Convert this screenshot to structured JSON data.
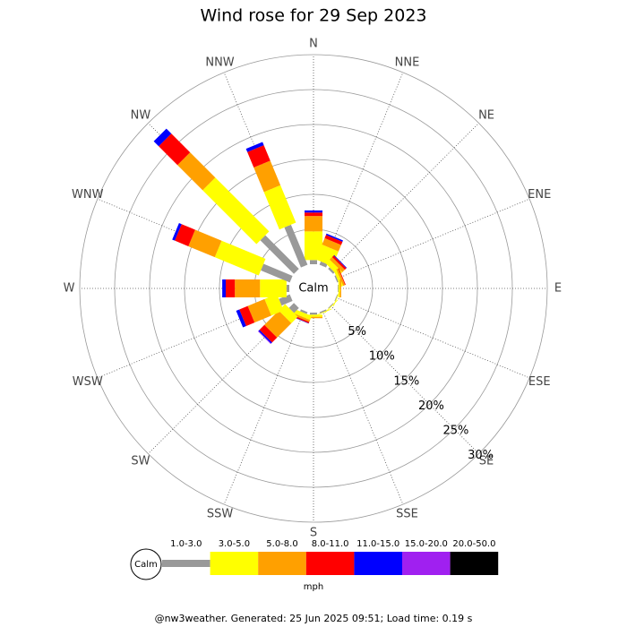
{
  "chart_data": {
    "type": "windrose",
    "title": "Wind rose for 29 Sep 2023",
    "categories": [
      "N",
      "NNE",
      "NE",
      "ENE",
      "E",
      "ESE",
      "SE",
      "SSE",
      "S",
      "SSW",
      "SW",
      "WSW",
      "W",
      "WNW",
      "NW",
      "NNW"
    ],
    "calm_label": "Calm",
    "unit": "mph",
    "rlim": [
      0,
      30
    ],
    "rticks": [
      {
        "value": 5,
        "label": "5%"
      },
      {
        "value": 10,
        "label": "10%"
      },
      {
        "value": 15,
        "label": "15%"
      },
      {
        "value": 20,
        "label": "20%"
      },
      {
        "value": 25,
        "label": "25%"
      },
      {
        "value": 30,
        "label": "30%"
      }
    ],
    "grid": true,
    "series": [
      {
        "name": "1.0-3.0",
        "color": "#999999",
        "values": [
          0.6,
          0.5,
          0.3,
          0.2,
          0.1,
          0.1,
          0.1,
          0.2,
          0.3,
          0.3,
          1.0,
          1.7,
          0.4,
          4.5,
          6.8,
          6.2
        ]
      },
      {
        "name": "3.0-5.0",
        "color": "#ffff00",
        "values": [
          4.1,
          2.3,
          0.8,
          0.4,
          0.2,
          0.1,
          0.1,
          0.1,
          0.3,
          0.6,
          1.3,
          1.9,
          3.8,
          6.8,
          10.9,
          5.8
        ]
      },
      {
        "name": "5.0-8.0",
        "color": "#ffa000",
        "values": [
          2.2,
          1.0,
          0.5,
          0.3,
          0.2,
          0,
          0,
          0,
          0.2,
          0.3,
          2.9,
          2.6,
          3.6,
          4.1,
          5.1,
          3.8
        ]
      },
      {
        "name": "8.0-11.0",
        "color": "#ff0000",
        "values": [
          0.5,
          0.5,
          0.3,
          0.1,
          0,
          0,
          0,
          0,
          0,
          0.2,
          1.0,
          1.3,
          1.3,
          2.1,
          3.8,
          2.4
        ]
      },
      {
        "name": "11.0-15.0",
        "color": "#0000ff",
        "values": [
          0.3,
          0.2,
          0.1,
          0,
          0,
          0,
          0,
          0,
          0,
          0.05,
          0.2,
          0.5,
          0.5,
          0.4,
          1.0,
          0.5
        ]
      },
      {
        "name": "15.0-20.0",
        "color": "#a020f0",
        "values": [
          0,
          0,
          0,
          0,
          0,
          0,
          0,
          0,
          0,
          0,
          0.1,
          0,
          0,
          0,
          0,
          0
        ]
      },
      {
        "name": "20.0-50.0",
        "color": "#000000",
        "values": [
          0,
          0,
          0,
          0,
          0,
          0,
          0,
          0,
          0,
          0,
          0,
          0,
          0,
          0,
          0,
          0
        ]
      }
    ]
  },
  "footer": "@nw3weather. Generated: 25 Jun 2025 09:51; Load time: 0.19 s"
}
